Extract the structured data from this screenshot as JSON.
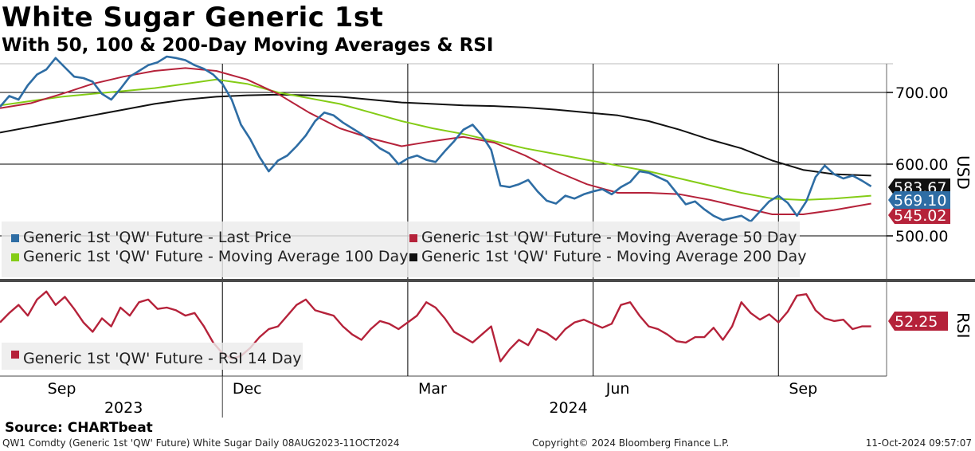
{
  "title": "White Sugar Generic 1st",
  "subtitle": "With 50, 100 & 200-Day Moving Averages & RSI",
  "source": "Source: CHARTbeat",
  "footer": {
    "left": "QW1 Comdty (Generic 1st 'QW' Future) White Sugar  Daily 08AUG2023-11OCT2024",
    "center": "Copyright© 2024 Bloomberg Finance L.P.",
    "right": "11-Oct-2024 09:57:07"
  },
  "colors": {
    "price": "#2e6da4",
    "ma50": "#b5223a",
    "ma100": "#84cc16",
    "ma200": "#111111",
    "rsi": "#b5223a",
    "divider": "#4a4a4a"
  },
  "chart_data": [
    {
      "type": "line",
      "panel": "price",
      "title": "White Sugar Generic 1st",
      "ylabel": "USD",
      "ylim": [
        440,
        740
      ],
      "yticks": [
        500,
        600,
        700
      ],
      "ytick_labels": [
        "500.00",
        "600.00",
        "700.00"
      ],
      "x_month_labels": [
        "Sep",
        "Dec",
        "Mar",
        "Jun",
        "Sep"
      ],
      "x_year_labels": [
        "2023",
        "2024"
      ],
      "x_month_positions": [
        1.0,
        4.0,
        7.0,
        10.0,
        13.0
      ],
      "x_year_positions": [
        2.0,
        9.2
      ],
      "xlim": [
        0,
        14.35
      ],
      "vertical_gridlines": [
        3.6,
        6.6,
        9.6,
        12.6
      ],
      "legend_position": "bottom-left",
      "last_value_tags": [
        {
          "label": "569.10",
          "value": 569.1,
          "series": "Generic 1st 'QW' Future - Last Price"
        },
        {
          "label": "545.02",
          "value": 545.02,
          "series": "Generic 1st 'QW' Future - Moving Average 50 Day"
        },
        {
          "label": "583.67",
          "value": 583.67,
          "series": "Generic 1st 'QW' Future - Moving Average 200 Day"
        }
      ],
      "series": [
        {
          "name": "Generic 1st 'QW' Future - Last Price",
          "color": "#2e6da4",
          "x": [
            0.0,
            0.15,
            0.3,
            0.45,
            0.6,
            0.75,
            0.9,
            1.05,
            1.2,
            1.35,
            1.5,
            1.65,
            1.8,
            1.95,
            2.1,
            2.25,
            2.4,
            2.55,
            2.7,
            2.85,
            3.0,
            3.15,
            3.3,
            3.45,
            3.6,
            3.75,
            3.9,
            4.05,
            4.2,
            4.35,
            4.5,
            4.65,
            4.8,
            4.95,
            5.1,
            5.25,
            5.4,
            5.55,
            5.7,
            5.85,
            6.0,
            6.15,
            6.3,
            6.45,
            6.6,
            6.75,
            6.9,
            7.05,
            7.2,
            7.35,
            7.5,
            7.65,
            7.8,
            7.95,
            8.1,
            8.25,
            8.4,
            8.55,
            8.7,
            8.85,
            9.0,
            9.15,
            9.3,
            9.45,
            9.6,
            9.75,
            9.9,
            10.05,
            10.2,
            10.35,
            10.5,
            10.65,
            10.8,
            10.95,
            11.1,
            11.25,
            11.4,
            11.55,
            11.7,
            11.85,
            12.0,
            12.15,
            12.3,
            12.45,
            12.6,
            12.75,
            12.9,
            13.05,
            13.2,
            13.35,
            13.5,
            13.65,
            13.8,
            13.95,
            14.1
          ],
          "values": [
            680,
            695,
            690,
            710,
            725,
            732,
            748,
            735,
            722,
            720,
            715,
            698,
            690,
            705,
            722,
            730,
            738,
            742,
            750,
            748,
            745,
            738,
            733,
            725,
            712,
            690,
            655,
            635,
            610,
            590,
            605,
            612,
            625,
            640,
            660,
            672,
            668,
            658,
            650,
            642,
            633,
            622,
            615,
            600,
            608,
            612,
            606,
            603,
            618,
            632,
            648,
            655,
            640,
            620,
            570,
            568,
            572,
            578,
            562,
            549,
            545,
            556,
            552,
            558,
            562,
            565,
            558,
            568,
            575,
            590,
            588,
            582,
            576,
            560,
            544,
            548,
            537,
            528,
            522,
            525,
            528,
            520,
            534,
            548,
            556,
            546,
            528,
            548,
            582,
            598,
            586,
            580,
            584,
            577,
            569
          ]
        },
        {
          "name": "Generic 1st 'QW' Future - Moving Average 50 Day",
          "color": "#b5223a",
          "x": [
            0.0,
            0.5,
            1.0,
            1.5,
            2.0,
            2.5,
            3.0,
            3.5,
            4.0,
            4.5,
            5.0,
            5.5,
            6.0,
            6.5,
            7.0,
            7.5,
            8.0,
            8.5,
            9.0,
            9.5,
            10.0,
            10.5,
            11.0,
            11.5,
            12.0,
            12.5,
            13.0,
            13.5,
            14.1
          ],
          "values": [
            678,
            685,
            698,
            712,
            722,
            730,
            734,
            730,
            718,
            698,
            672,
            650,
            636,
            625,
            632,
            638,
            630,
            612,
            590,
            572,
            560,
            560,
            558,
            550,
            540,
            530,
            530,
            536,
            545
          ]
        },
        {
          "name": "Generic 1st 'QW' Future - Moving Average 100 Day",
          "color": "#84cc16",
          "x": [
            0.0,
            0.5,
            1.0,
            1.5,
            2.0,
            2.5,
            3.0,
            3.5,
            4.0,
            4.5,
            5.0,
            5.5,
            6.0,
            6.5,
            7.0,
            7.5,
            8.0,
            8.5,
            9.0,
            9.5,
            10.0,
            10.5,
            11.0,
            11.5,
            12.0,
            12.5,
            13.0,
            13.5,
            14.1
          ],
          "values": [
            682,
            688,
            694,
            698,
            702,
            706,
            712,
            718,
            712,
            700,
            692,
            684,
            672,
            660,
            650,
            642,
            632,
            622,
            614,
            606,
            598,
            590,
            580,
            570,
            560,
            552,
            550,
            552,
            556
          ]
        },
        {
          "name": "Generic 1st 'QW' Future - Moving Average 200 Day",
          "color": "#111111",
          "x": [
            0.0,
            0.5,
            1.0,
            1.5,
            2.0,
            2.5,
            3.0,
            3.5,
            4.0,
            4.5,
            5.0,
            5.5,
            6.0,
            6.5,
            7.0,
            7.5,
            8.0,
            8.5,
            9.0,
            9.5,
            10.0,
            10.5,
            11.0,
            11.5,
            12.0,
            12.5,
            13.0,
            13.5,
            14.1
          ],
          "values": [
            644,
            652,
            660,
            668,
            676,
            684,
            690,
            694,
            696,
            697,
            696,
            694,
            690,
            686,
            684,
            682,
            681,
            679,
            676,
            672,
            668,
            660,
            648,
            634,
            622,
            605,
            592,
            586,
            584
          ]
        }
      ]
    },
    {
      "type": "line",
      "panel": "rsi",
      "ylabel": "RSI",
      "ylim": [
        15,
        85
      ],
      "last_value_tags": [
        {
          "label": "52.25",
          "value": 52.25,
          "series": "Generic 1st 'QW' Future - RSI 14 Day"
        }
      ],
      "series": [
        {
          "name": "Generic 1st 'QW' Future - RSI 14 Day",
          "color": "#b5223a",
          "x": [
            0.0,
            0.15,
            0.3,
            0.45,
            0.6,
            0.75,
            0.9,
            1.05,
            1.2,
            1.35,
            1.5,
            1.65,
            1.8,
            1.95,
            2.1,
            2.25,
            2.4,
            2.55,
            2.7,
            2.85,
            3.0,
            3.15,
            3.3,
            3.45,
            3.6,
            3.75,
            3.9,
            4.05,
            4.2,
            4.35,
            4.5,
            4.65,
            4.8,
            4.95,
            5.1,
            5.25,
            5.4,
            5.55,
            5.7,
            5.85,
            6.0,
            6.15,
            6.3,
            6.45,
            6.6,
            6.75,
            6.9,
            7.05,
            7.2,
            7.35,
            7.5,
            7.65,
            7.8,
            7.95,
            8.1,
            8.25,
            8.4,
            8.55,
            8.7,
            8.85,
            9.0,
            9.15,
            9.3,
            9.45,
            9.6,
            9.75,
            9.9,
            10.05,
            10.2,
            10.35,
            10.5,
            10.65,
            10.8,
            10.95,
            11.1,
            11.25,
            11.4,
            11.55,
            11.7,
            11.85,
            12.0,
            12.15,
            12.3,
            12.45,
            12.6,
            12.75,
            12.9,
            13.05,
            13.2,
            13.35,
            13.5,
            13.65,
            13.8,
            13.95,
            14.1
          ],
          "values": [
            55,
            62,
            68,
            60,
            72,
            78,
            68,
            74,
            65,
            55,
            48,
            58,
            52,
            66,
            60,
            70,
            72,
            65,
            66,
            64,
            60,
            62,
            52,
            40,
            32,
            28,
            30,
            36,
            44,
            50,
            52,
            60,
            68,
            72,
            64,
            62,
            60,
            52,
            46,
            42,
            50,
            56,
            54,
            50,
            55,
            60,
            70,
            66,
            58,
            48,
            44,
            40,
            46,
            52,
            26,
            35,
            42,
            38,
            50,
            47,
            42,
            50,
            55,
            57,
            54,
            51,
            54,
            68,
            70,
            60,
            52,
            50,
            46,
            41,
            40,
            44,
            44,
            51,
            42,
            52,
            70,
            62,
            57,
            61,
            55,
            63,
            75,
            76,
            64,
            58,
            56,
            57,
            50,
            52,
            52
          ]
        }
      ]
    }
  ],
  "legend": {
    "price_items": [
      {
        "label": "Generic 1st 'QW' Future - Last Price",
        "color": "#2e6da4"
      },
      {
        "label": "Generic 1st 'QW' Future - Moving Average 50 Day",
        "color": "#b5223a"
      },
      {
        "label": "Generic 1st 'QW' Future - Moving Average 100 Day",
        "color": "#84cc16"
      },
      {
        "label": "Generic 1st 'QW' Future - Moving Average 200 Day",
        "color": "#111111"
      }
    ],
    "rsi_items": [
      {
        "label": "Generic 1st 'QW' Future - RSI 14 Day",
        "color": "#b5223a"
      }
    ]
  }
}
